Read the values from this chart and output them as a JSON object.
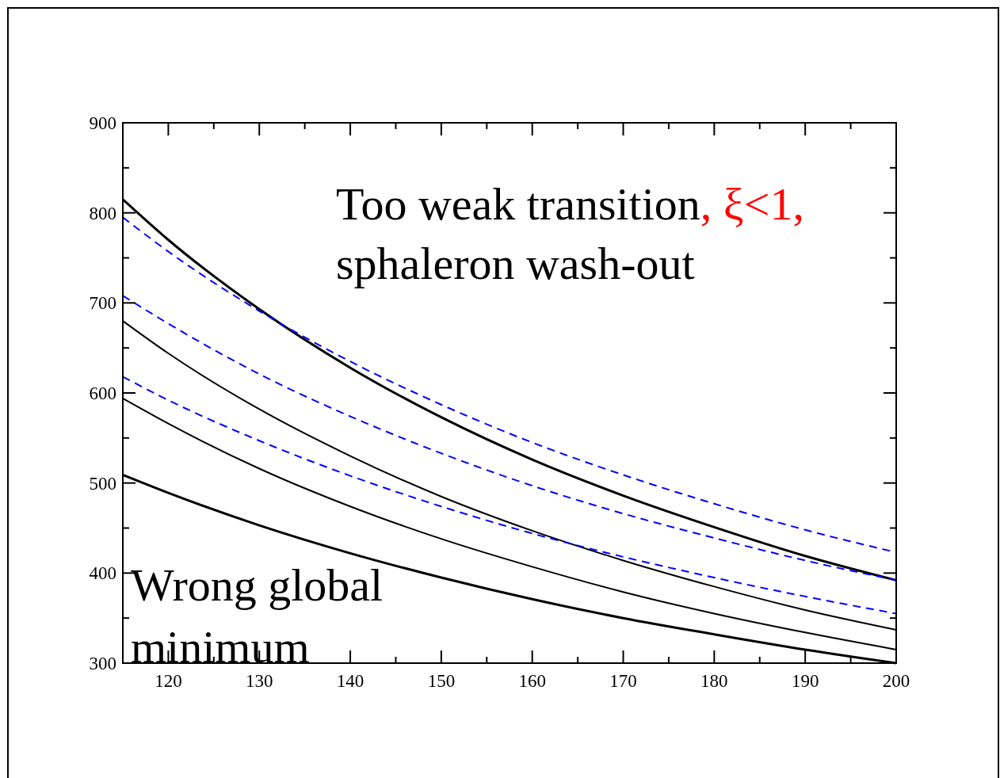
{
  "chart_data": {
    "type": "line",
    "x": [
      115,
      120,
      130,
      140,
      150,
      160,
      170,
      180,
      190,
      200
    ],
    "xlim": [
      115,
      200
    ],
    "xticks": [
      120,
      {
        "value": 125,
        "label": null
      },
      130,
      {
        "value": 135,
        "label": null
      },
      140,
      {
        "value": 145,
        "label": null
      },
      150,
      {
        "value": 155,
        "label": null
      },
      160,
      {
        "value": 165,
        "label": null
      },
      170,
      {
        "value": 175,
        "label": null
      },
      180,
      {
        "value": 185,
        "label": null
      },
      190,
      {
        "value": 195,
        "label": null
      },
      200
    ],
    "ylim": [
      300,
      900
    ],
    "yticks": [
      300,
      {
        "value": 350,
        "label": null
      },
      400,
      {
        "value": 450,
        "label": null
      },
      500,
      {
        "value": 550,
        "label": null
      },
      600,
      {
        "value": 650,
        "label": null
      },
      700,
      {
        "value": 750,
        "label": null
      },
      800,
      {
        "value": 850,
        "label": null
      },
      900
    ],
    "grid": false,
    "marker": "none",
    "series": [
      {
        "color": "#000000",
        "line_style": "solid",
        "values": [
          815,
          770,
          693,
          628,
          573,
          526,
          486,
          451,
          419,
          392
        ]
      },
      {
        "color": "#0000ff",
        "line_style": "dashed",
        "values": [
          795,
          757,
          691,
          635,
          587,
          545,
          509,
          477,
          448,
          423
        ]
      },
      {
        "color": "#0000ff",
        "line_style": "dashed",
        "values": [
          708,
          677,
          621,
          574,
          533,
          497,
          466,
          439,
          414,
          392
        ]
      },
      {
        "color": "#000000",
        "line_style": "solid",
        "values": [
          680,
          644,
          582,
          530,
          485,
          447,
          414,
          385,
          359,
          337
        ]
      },
      {
        "color": "#0000ff",
        "line_style": "dashed",
        "values": [
          618,
          592,
          547,
          508,
          474,
          444,
          418,
          395,
          374,
          355
        ]
      },
      {
        "color": "#000000",
        "line_style": "solid",
        "values": [
          594,
          566,
          516,
          474,
          438,
          407,
          379,
          355,
          334,
          315
        ]
      },
      {
        "color": "#000000",
        "line_style": "solid",
        "values": [
          509,
          489,
          453,
          422,
          395,
          371,
          350,
          332,
          315,
          300
        ]
      }
    ],
    "annotations": [
      "Too weak transition",
      ", ξ<1,",
      "sphaleron wash-out",
      "Wrong global minimum"
    ]
  }
}
